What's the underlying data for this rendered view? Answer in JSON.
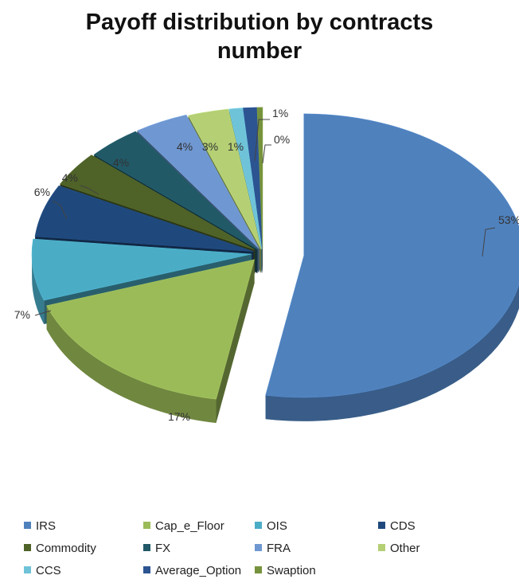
{
  "chart_data": {
    "type": "pie",
    "title_lines": [
      "Payoff distribution by contracts",
      "number"
    ],
    "legend_position": "bottom",
    "slices": [
      {
        "name": "IRS",
        "value": 53,
        "label": "53%",
        "color": "#4f81bd"
      },
      {
        "name": "Cap_e_Floor",
        "value": 17,
        "label": "17%",
        "color": "#9bbb59"
      },
      {
        "name": "OIS",
        "value": 7,
        "label": "7%",
        "color": "#4bacc6"
      },
      {
        "name": "CDS",
        "value": 6,
        "label": "6%",
        "color": "#1f497d"
      },
      {
        "name": "Commodity",
        "value": 4,
        "label": "4%",
        "color": "#4f6228"
      },
      {
        "name": "FX",
        "value": 4,
        "label": "4%",
        "color": "#215967"
      },
      {
        "name": "FRA",
        "value": 4,
        "label": "4%",
        "color": "#6f97d1"
      },
      {
        "name": "Other",
        "value": 3,
        "label": "3%",
        "color": "#b4cf74"
      },
      {
        "name": "CCS",
        "value": 1,
        "label": "1%",
        "color": "#6fc3d8"
      },
      {
        "name": "Average_Option",
        "value": 1,
        "label": "1%",
        "color": "#2c5491"
      },
      {
        "name": "Swaption",
        "value": 0.4,
        "label": "0%",
        "color": "#76923c"
      }
    ]
  }
}
